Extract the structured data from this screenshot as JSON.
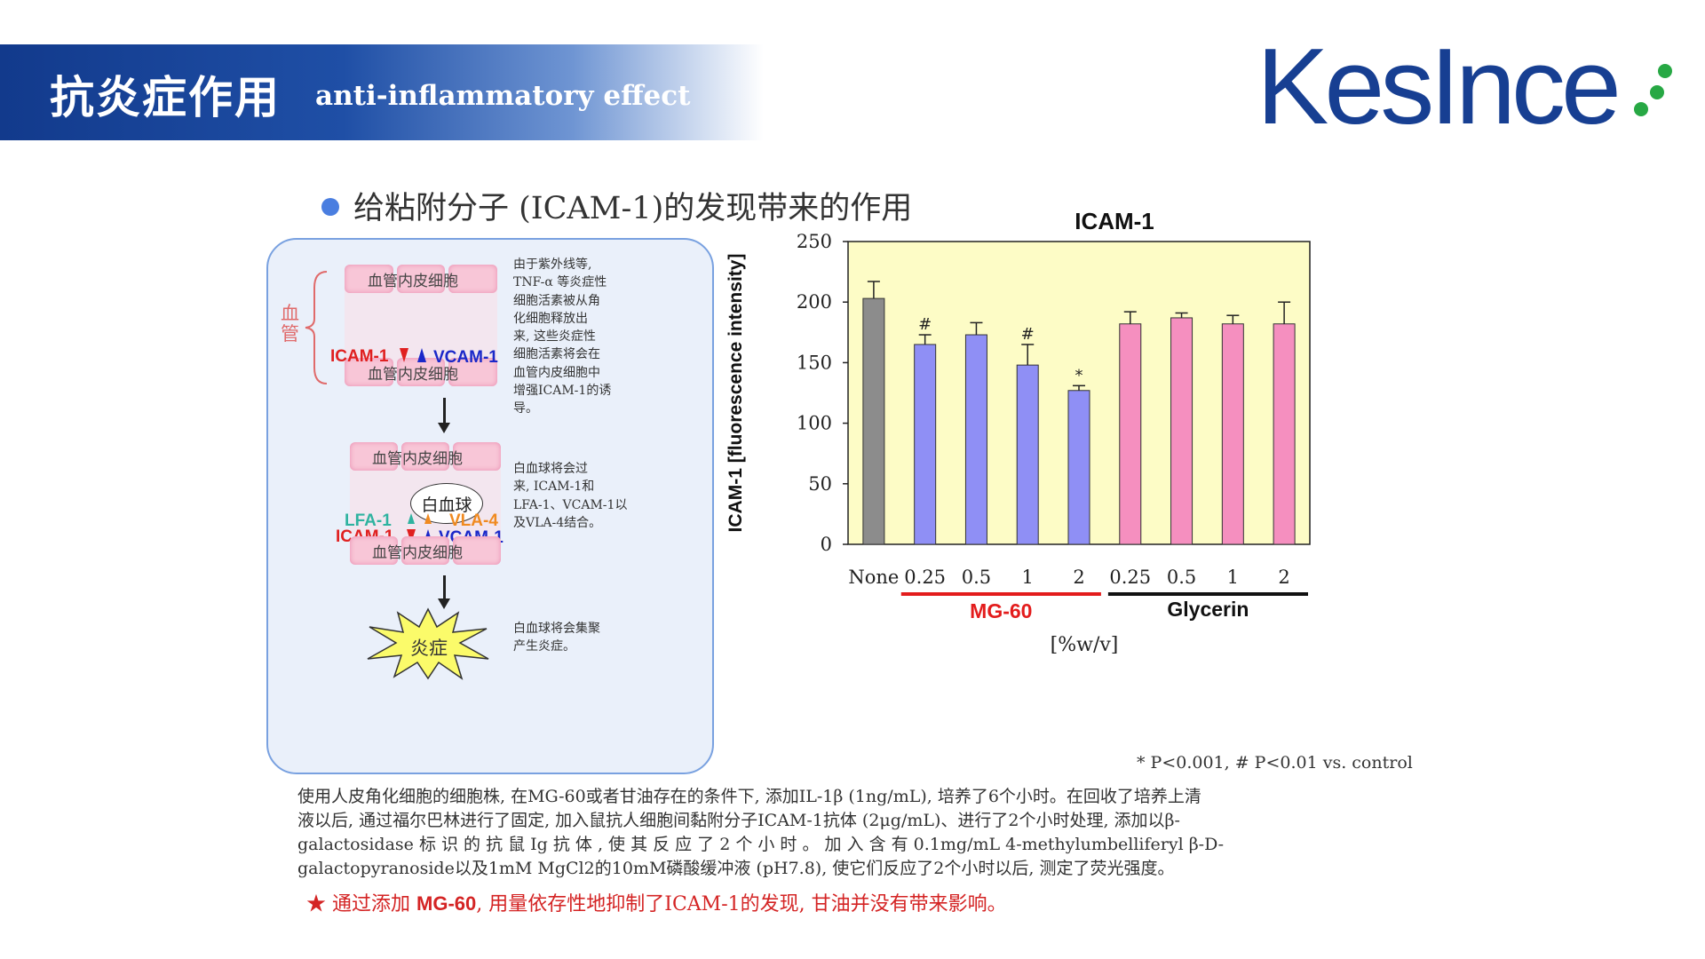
{
  "header": {
    "title": "抗炎症作用",
    "subtitle": "anti-inflammatory effect",
    "logo_text": "KesInce",
    "brand_color": "#173f92",
    "logo_dot_color": "#27a844"
  },
  "section": {
    "bullet_title": "给粘附分子 (ICAM-1)的发现带来的作用"
  },
  "diagram": {
    "vessel_label": "血\n管",
    "cell_label": "血管内皮细胞",
    "stage1": {
      "icam": "ICAM-1",
      "vcam": "VCAM-1",
      "note": [
        "由于紫外线等,",
        "TNF-α 等炎症性",
        "细胞活素被从角",
        "化细胞释放出",
        "来, 这些炎症性",
        "细胞活素将会在",
        "血管内皮细胞中",
        "增强ICAM-1的诱",
        "导。"
      ]
    },
    "stage2": {
      "leukocyte": "白血球",
      "lfa": "LFA-1",
      "vla": "VLA-4",
      "icam": "ICAM-1",
      "vcam": "VCAM-1",
      "note": [
        "白血球将会过",
        "来, ICAM-1和",
        "LFA-1、VCAM-1以",
        "及VLA-4结合。"
      ]
    },
    "stage3": {
      "label": "炎症",
      "note": [
        "白血球将会集聚",
        "产生炎症。"
      ]
    }
  },
  "chart_data": {
    "type": "bar",
    "title": "ICAM-1",
    "ylabel": "ICAM-1 [fluorescence intensity]",
    "xlabel": "[%w/v]",
    "ylim": [
      0,
      250
    ],
    "yticks": [
      0,
      50,
      100,
      150,
      200,
      250
    ],
    "categories": [
      "None",
      "0.25",
      "0.5",
      "1",
      "2",
      "0.25",
      "0.5",
      "1",
      "2"
    ],
    "values": [
      203,
      165,
      173,
      148,
      127,
      182,
      187,
      182,
      182
    ],
    "errors": [
      14,
      8,
      10,
      17,
      4,
      10,
      4,
      7,
      18
    ],
    "significance": [
      "",
      "#",
      "",
      "#",
      "*",
      "",
      "",
      "",
      ""
    ],
    "bar_colors": [
      "#8c8c8c",
      "#8f8ff5",
      "#8f8ff5",
      "#8f8ff5",
      "#8f8ff5",
      "#f58fbf",
      "#f58fbf",
      "#f58fbf",
      "#f58fbf"
    ],
    "groups": [
      {
        "name": "MG-60",
        "color": "#e31c1c"
      },
      {
        "name": "Glycerin",
        "color": "#111111"
      }
    ],
    "plot_background": "#fdfcc6"
  },
  "footnote": "* P<0.001, # P<0.01 vs. control",
  "description": [
    "使用人皮角化细胞的细胞株, 在MG-60或者甘油存在的条件下, 添加IL-1β (1ng/mL), 培养了6个小时。在回收了培养上清",
    "液以后, 通过福尔巴林进行了固定, 加入鼠抗人细胞间黏附分子ICAM-1抗体 (2μg/mL)、进行了2个小时处理, 添加以β-",
    "galactosidase 标 识 的 抗 鼠 Ig 抗 体 , 使 其 反 应 了 2 个 小 时 。 加 入 含 有 0.1mg/mL 4-methylumbelliferyl β-D-",
    "galactopyranoside以及1mM MgCl2的10mM磷酸缓冲液 (pH7.8), 使它们反应了2个小时以后, 测定了荧光强度。"
  ],
  "conclusion": {
    "star": "★",
    "pre": "通过添加",
    "bold": "MG-60",
    "post": ", 用量依存性地抑制了ICAM-1的发现, 甘油并没有带来影响。"
  }
}
